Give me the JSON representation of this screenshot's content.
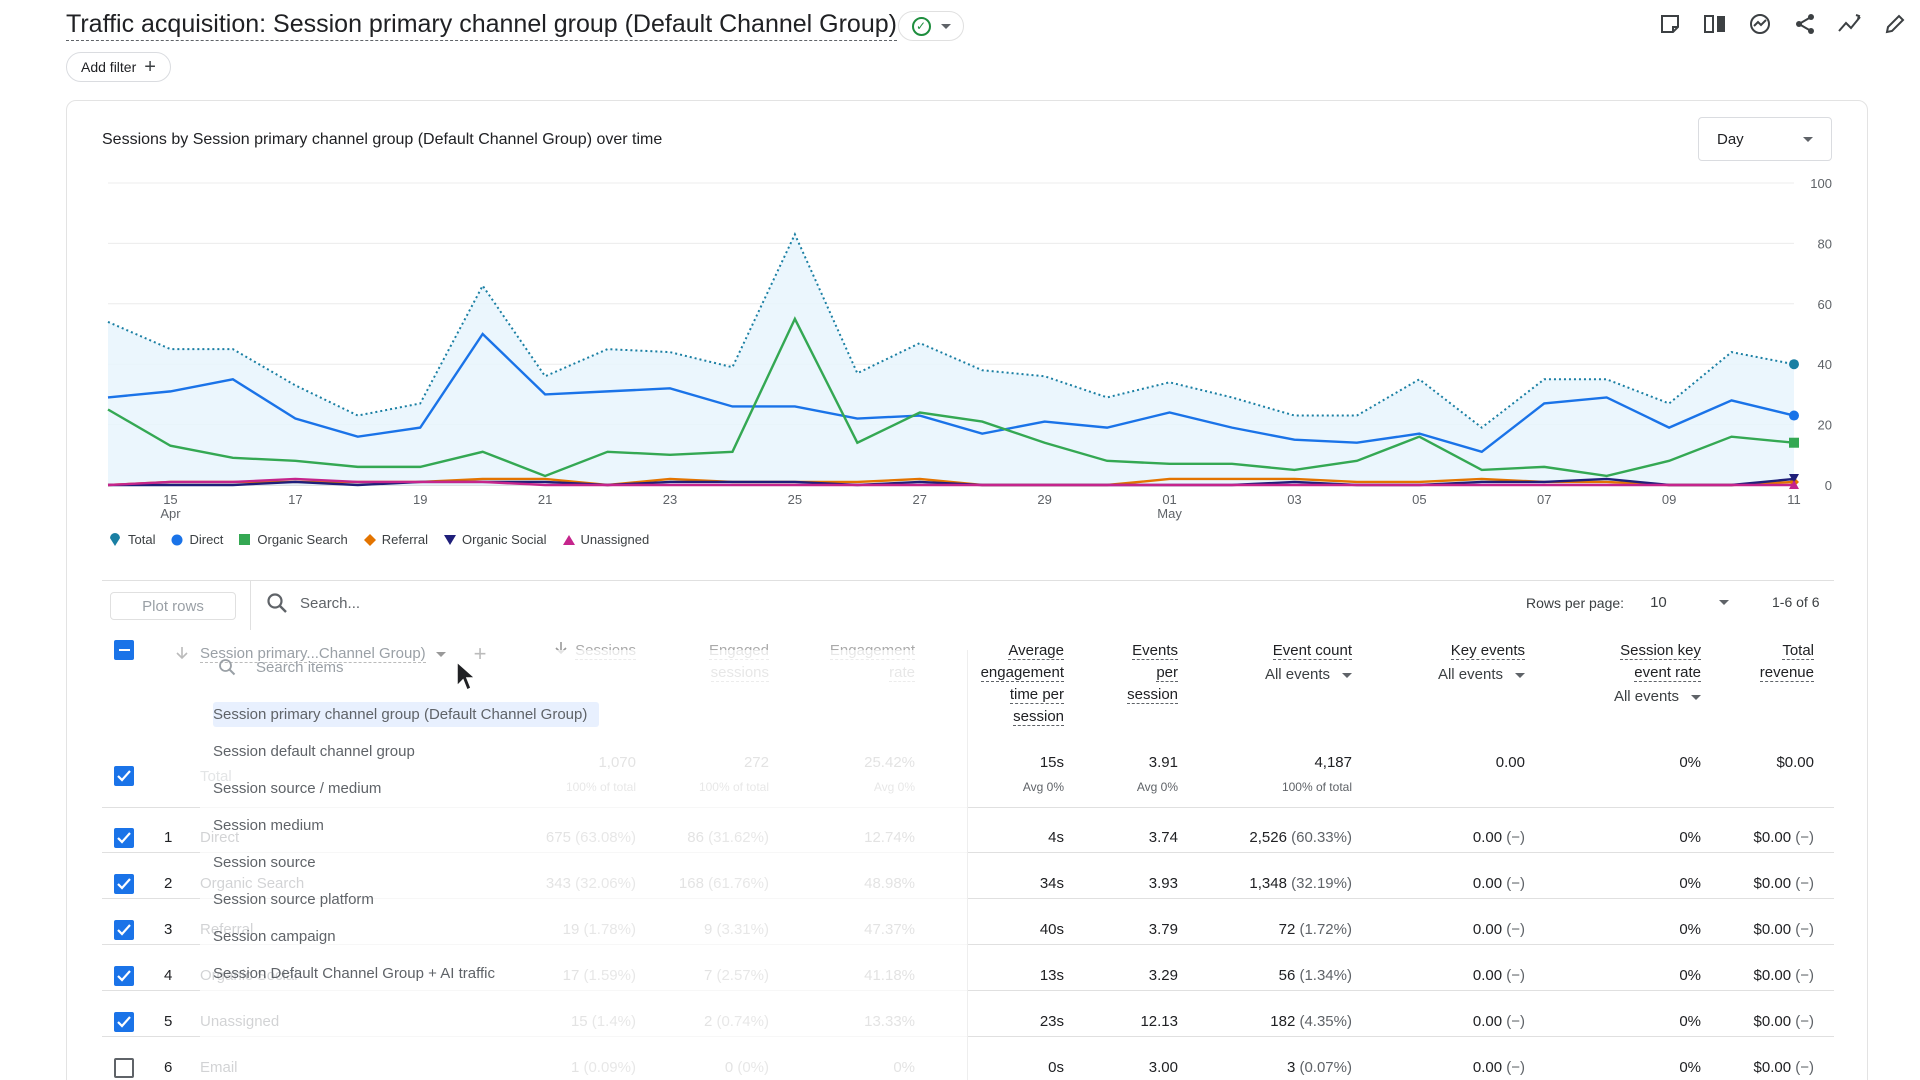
{
  "header": {
    "title": "Traffic acquisition: Session primary channel group (Default Channel Group)",
    "add_filter": "Add filter"
  },
  "toolbar_icons": [
    "comment-icon",
    "compare-icon",
    "insights-icon",
    "share-icon",
    "trend-icon",
    "edit-icon"
  ],
  "chart": {
    "title": "Sessions by Session primary channel group (Default Channel Group) over time",
    "granularity": "Day"
  },
  "chart_data": {
    "type": "line",
    "x": [
      "Apr 14",
      "Apr 15",
      "Apr 16",
      "Apr 17",
      "Apr 18",
      "Apr 19",
      "Apr 20",
      "Apr 21",
      "Apr 22",
      "Apr 23",
      "Apr 24",
      "Apr 25",
      "Apr 26",
      "Apr 27",
      "Apr 28",
      "Apr 29",
      "Apr 30",
      "May 01",
      "May 02",
      "May 03",
      "May 04",
      "May 05",
      "May 06",
      "May 07",
      "May 08",
      "May 09",
      "May 10",
      "May 11"
    ],
    "x_ticks": [
      {
        "label": "15",
        "sub": "Apr"
      },
      {
        "label": "17",
        "sub": ""
      },
      {
        "label": "19",
        "sub": ""
      },
      {
        "label": "21",
        "sub": ""
      },
      {
        "label": "23",
        "sub": ""
      },
      {
        "label": "25",
        "sub": ""
      },
      {
        "label": "27",
        "sub": ""
      },
      {
        "label": "29",
        "sub": ""
      },
      {
        "label": "01",
        "sub": "May"
      },
      {
        "label": "03",
        "sub": ""
      },
      {
        "label": "05",
        "sub": ""
      },
      {
        "label": "07",
        "sub": ""
      },
      {
        "label": "09",
        "sub": ""
      },
      {
        "label": "11",
        "sub": ""
      }
    ],
    "y_ticks": [
      "0",
      "20",
      "40",
      "60",
      "80",
      "100"
    ],
    "ylim": [
      0,
      100
    ],
    "grid": true,
    "legend_position": "bottom-left",
    "series": [
      {
        "name": "Total",
        "color": "#1a73e8",
        "values": [
          54,
          45,
          45,
          33,
          23,
          27,
          66,
          36,
          45,
          44,
          39,
          83,
          37,
          47,
          38,
          36,
          29,
          34,
          29,
          23,
          23,
          35,
          19,
          35,
          35,
          27,
          44,
          40
        ]
      },
      {
        "name": "Direct",
        "color": "#1a73e8",
        "values": [
          29,
          31,
          35,
          22,
          16,
          19,
          50,
          30,
          31,
          32,
          26,
          26,
          22,
          23,
          17,
          21,
          19,
          24,
          19,
          15,
          14,
          17,
          11,
          27,
          29,
          19,
          28,
          23
        ]
      },
      {
        "name": "Organic Search",
        "color": "#34a853",
        "values": [
          25,
          13,
          9,
          8,
          6,
          6,
          11,
          3,
          11,
          10,
          11,
          55,
          14,
          24,
          21,
          14,
          8,
          7,
          7,
          5,
          8,
          16,
          5,
          6,
          3,
          8,
          16,
          14
        ]
      },
      {
        "name": "Referral",
        "color": "#e37400",
        "values": [
          0,
          1,
          1,
          1,
          1,
          1,
          2,
          2,
          0,
          2,
          1,
          1,
          1,
          2,
          0,
          0,
          0,
          2,
          2,
          2,
          1,
          1,
          2,
          1,
          1,
          0,
          0,
          1
        ]
      },
      {
        "name": "Organic Social",
        "color": "#1f1f7a",
        "values": [
          0,
          0,
          0,
          1,
          0,
          1,
          1,
          1,
          0,
          1,
          1,
          1,
          0,
          1,
          0,
          0,
          0,
          0,
          0,
          1,
          0,
          0,
          1,
          1,
          2,
          0,
          0,
          2
        ]
      },
      {
        "name": "Unassigned",
        "color": "#c5258c",
        "values": [
          0,
          1,
          1,
          2,
          1,
          1,
          1,
          0,
          0,
          0,
          0,
          0,
          0,
          0,
          0,
          0,
          0,
          0,
          0,
          0,
          0,
          0,
          0,
          0,
          0,
          0,
          0,
          0
        ]
      }
    ]
  },
  "table_toolbar": {
    "plot_rows": "Plot rows",
    "search_placeholder": "Search...",
    "rows_per_page_label": "Rows per page:",
    "rows_per_page_value": "10",
    "pager": "1-6 of 6"
  },
  "table": {
    "dimension_header": "Session primary...Channel Group)",
    "columns": [
      {
        "lines": [
          "Sessions"
        ],
        "sub": ""
      },
      {
        "lines": [
          "Engaged",
          "sessions"
        ],
        "sub": ""
      },
      {
        "lines": [
          "Engagement",
          "rate"
        ],
        "sub": ""
      },
      {
        "lines": [
          "Average",
          "engagement",
          "time per",
          "session"
        ],
        "sub": ""
      },
      {
        "lines": [
          "Events",
          "per",
          "session"
        ],
        "sub": ""
      },
      {
        "lines": [
          "Event count"
        ],
        "sub": "All events"
      },
      {
        "lines": [
          "Key events"
        ],
        "sub": "All events"
      },
      {
        "lines": [
          "Session key",
          "event rate"
        ],
        "sub": "All events"
      },
      {
        "lines": [
          "Total",
          "revenue"
        ],
        "sub": ""
      }
    ],
    "total": {
      "label": "Total",
      "values": [
        "1,070",
        "272",
        "25.42%",
        "15s",
        "3.91",
        "4,187",
        "0.00",
        "0%",
        "$0.00"
      ],
      "subs": [
        "100% of total",
        "100% of total",
        "Avg 0%",
        "Avg 0%",
        "Avg 0%",
        "100% of total",
        "",
        "",
        ""
      ]
    },
    "rows": [
      {
        "n": "1",
        "name": "Direct",
        "checked": true,
        "cells": [
          [
            "675",
            "(63.08%)"
          ],
          [
            "86",
            "(31.62%)"
          ],
          [
            "12.74%",
            ""
          ],
          [
            "4s",
            ""
          ],
          [
            "3.74",
            ""
          ],
          [
            "2,526",
            "(60.33%)"
          ],
          [
            "0.00",
            "(−)"
          ],
          [
            "0%",
            ""
          ],
          [
            "$0.00",
            "(−)"
          ]
        ]
      },
      {
        "n": "2",
        "name": "Organic Search",
        "checked": true,
        "cells": [
          [
            "343",
            "(32.06%)"
          ],
          [
            "168",
            "(61.76%)"
          ],
          [
            "48.98%",
            ""
          ],
          [
            "34s",
            ""
          ],
          [
            "3.93",
            ""
          ],
          [
            "1,348",
            "(32.19%)"
          ],
          [
            "0.00",
            "(−)"
          ],
          [
            "0%",
            ""
          ],
          [
            "$0.00",
            "(−)"
          ]
        ]
      },
      {
        "n": "3",
        "name": "Referral",
        "checked": true,
        "cells": [
          [
            "19",
            "(1.78%)"
          ],
          [
            "9",
            "(3.31%)"
          ],
          [
            "47.37%",
            ""
          ],
          [
            "40s",
            ""
          ],
          [
            "3.79",
            ""
          ],
          [
            "72",
            "(1.72%)"
          ],
          [
            "0.00",
            "(−)"
          ],
          [
            "0%",
            ""
          ],
          [
            "$0.00",
            "(−)"
          ]
        ]
      },
      {
        "n": "4",
        "name": "Organic Social",
        "checked": true,
        "cells": [
          [
            "17",
            "(1.59%)"
          ],
          [
            "7",
            "(2.57%)"
          ],
          [
            "41.18%",
            ""
          ],
          [
            "13s",
            ""
          ],
          [
            "3.29",
            ""
          ],
          [
            "56",
            "(1.34%)"
          ],
          [
            "0.00",
            "(−)"
          ],
          [
            "0%",
            ""
          ],
          [
            "$0.00",
            "(−)"
          ]
        ]
      },
      {
        "n": "5",
        "name": "Unassigned",
        "checked": true,
        "cells": [
          [
            "15",
            "(1.4%)"
          ],
          [
            "2",
            "(0.74%)"
          ],
          [
            "13.33%",
            ""
          ],
          [
            "23s",
            ""
          ],
          [
            "12.13",
            ""
          ],
          [
            "182",
            "(4.35%)"
          ],
          [
            "0.00",
            "(−)"
          ],
          [
            "0%",
            ""
          ],
          [
            "$0.00",
            "(−)"
          ]
        ]
      },
      {
        "n": "6",
        "name": "Email",
        "checked": false,
        "cells": [
          [
            "1",
            "(0.09%)"
          ],
          [
            "0",
            "(0%)"
          ],
          [
            "0%",
            ""
          ],
          [
            "0s",
            ""
          ],
          [
            "3.00",
            ""
          ],
          [
            "3",
            "(0.07%)"
          ],
          [
            "0.00",
            "(−)"
          ],
          [
            "0%",
            ""
          ],
          [
            "$0.00",
            "(−)"
          ]
        ]
      }
    ]
  },
  "dimension_dropdown": {
    "search_placeholder": "Search items",
    "items": [
      "Session primary channel group (Default Channel Group)",
      "Session default channel group",
      "Session source / medium",
      "Session medium",
      "Session source",
      "Session source platform",
      "Session campaign",
      "Session Default Channel Group + AI traffic"
    ],
    "selected_index": 0
  }
}
